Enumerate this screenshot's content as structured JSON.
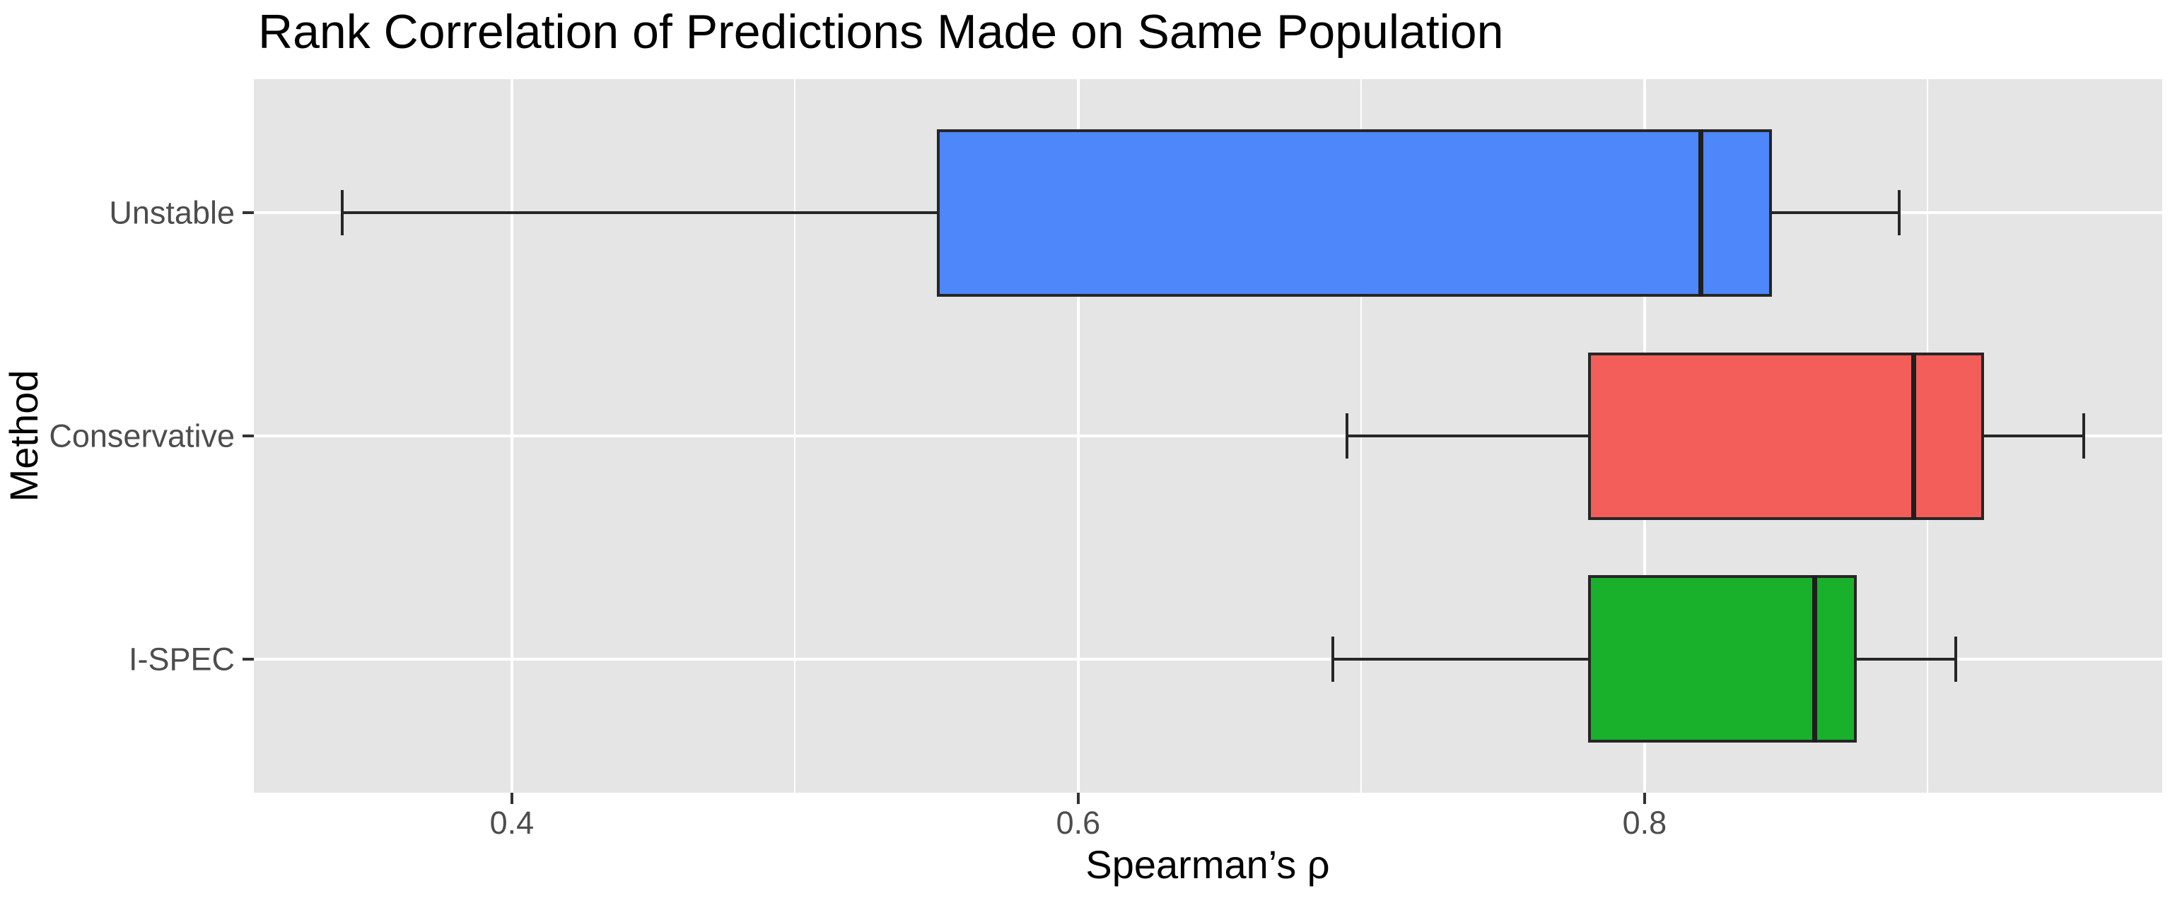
{
  "title": "Rank Correlation of Predictions Made on Same Population",
  "style": {
    "panel_bg": "#E5E5E5",
    "gridline_color": "#FFFFFF",
    "box_border_color": "#262626",
    "median_color": "#1F1F1F",
    "whisker_color": "#262626",
    "tick_mark_color": "#333333",
    "tick_label_color": "#4D4D4D",
    "axis_title_color": "#000000"
  },
  "chart_data": {
    "type": "boxplot",
    "orientation": "horizontal",
    "title": "Rank Correlation of Predictions Made on Same Population",
    "xlabel": "Spearman’s ρ",
    "ylabel": "Method",
    "categories": [
      "Unstable",
      "Conservative",
      "I-SPEC"
    ],
    "series": [
      {
        "name": "Unstable",
        "fill": "#4D87FA",
        "min": 0.34,
        "q1": 0.55,
        "median": 0.82,
        "q3": 0.845,
        "max": 0.89
      },
      {
        "name": "Conservative",
        "fill": "#F35E5A",
        "min": 0.695,
        "q1": 0.78,
        "median": 0.895,
        "q3": 0.92,
        "max": 0.955
      },
      {
        "name": "I-SPEC",
        "fill": "#19B02B",
        "min": 0.69,
        "q1": 0.78,
        "median": 0.86,
        "q3": 0.875,
        "max": 0.91
      }
    ],
    "xlim": [
      0.3089,
      0.9828
    ],
    "x_ticks": [
      {
        "value": 0.4,
        "label": "0.4"
      },
      {
        "value": 0.6,
        "label": "0.6"
      },
      {
        "value": 0.8,
        "label": "0.8"
      }
    ],
    "x_minor_gridlines": [
      0.5,
      0.7,
      0.9
    ],
    "grid": true,
    "legend": "none"
  }
}
